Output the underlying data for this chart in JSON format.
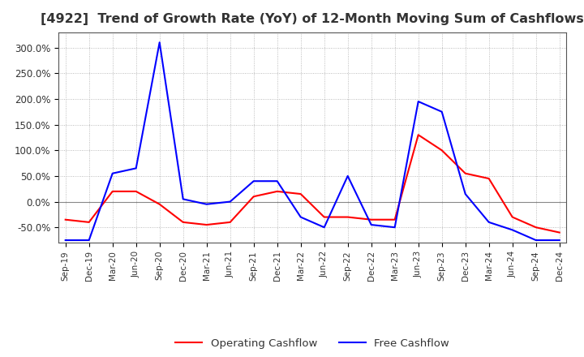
{
  "title": "[4922]  Trend of Growth Rate (YoY) of 12-Month Moving Sum of Cashflows",
  "title_fontsize": 11.5,
  "title_color": "#333333",
  "background_color": "#ffffff",
  "plot_bg_color": "#ffffff",
  "grid_color": "#aaaaaa",
  "ylim": [
    -80,
    330
  ],
  "yticks": [
    -50,
    0,
    50,
    100,
    150,
    200,
    250,
    300
  ],
  "ytick_labels": [
    "-50.0%",
    "0.0%",
    "50.0%",
    "100.0%",
    "150.0%",
    "200.0%",
    "250.0%",
    "300.0%"
  ],
  "x_labels": [
    "Sep-19",
    "Dec-19",
    "Mar-20",
    "Jun-20",
    "Sep-20",
    "Dec-20",
    "Mar-21",
    "Jun-21",
    "Sep-21",
    "Dec-21",
    "Mar-22",
    "Jun-22",
    "Sep-22",
    "Dec-22",
    "Mar-23",
    "Jun-23",
    "Sep-23",
    "Dec-23",
    "Mar-24",
    "Jun-24",
    "Sep-24",
    "Dec-24"
  ],
  "operating_cashflow": [
    -35,
    -40,
    20,
    20,
    -5,
    -40,
    -45,
    -40,
    10,
    20,
    15,
    -30,
    -30,
    -35,
    -35,
    130,
    100,
    55,
    45,
    -30,
    -50,
    -60
  ],
  "free_cashflow": [
    -75,
    -75,
    55,
    65,
    310,
    5,
    -5,
    0,
    40,
    40,
    -30,
    -50,
    50,
    -45,
    -50,
    195,
    175,
    15,
    -40,
    -55,
    -75,
    -75
  ],
  "operating_color": "#ff0000",
  "free_color": "#0000ff",
  "legend_labels": [
    "Operating Cashflow",
    "Free Cashflow"
  ],
  "line_width": 1.5
}
